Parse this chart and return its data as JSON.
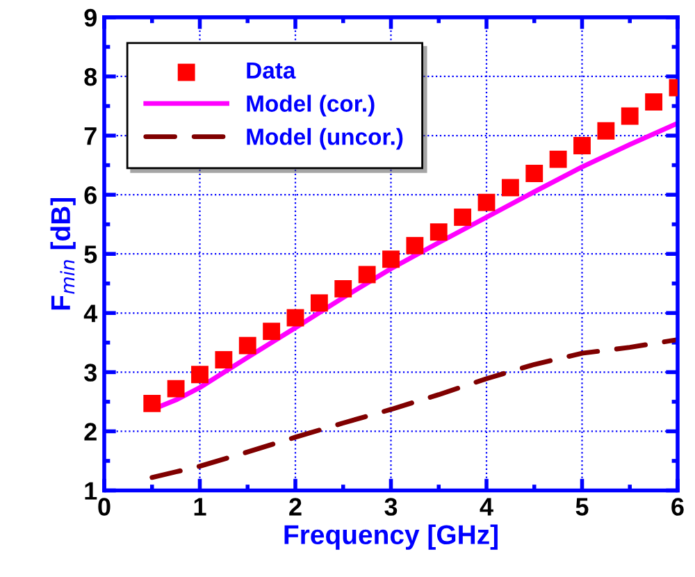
{
  "chart_data": {
    "type": "scatter",
    "xlabel": "Frequency [GHz]",
    "ylabel": "F$_{min}$ [dB]",
    "xlim": [
      0,
      6
    ],
    "ylim": [
      1,
      9
    ],
    "xticks": [
      0,
      1,
      2,
      3,
      4,
      5,
      6
    ],
    "yticks": [
      1,
      2,
      3,
      4,
      5,
      6,
      7,
      8,
      9
    ],
    "grid": true,
    "legend": "top left",
    "series": [
      {
        "name": "Data",
        "marker": "square",
        "color": "#ff0000",
        "x": [
          0.5,
          0.75,
          1,
          1.25,
          1.5,
          1.75,
          2,
          2.25,
          2.5,
          2.75,
          3,
          3.25,
          3.5,
          3.75,
          4,
          4.25,
          4.5,
          4.75,
          5,
          5.25,
          5.5,
          5.75,
          6
        ],
        "values": [
          2.47,
          2.72,
          2.96,
          3.21,
          3.45,
          3.69,
          3.92,
          4.17,
          4.41,
          4.65,
          4.91,
          5.14,
          5.37,
          5.62,
          5.87,
          6.12,
          6.36,
          6.6,
          6.83,
          7.08,
          7.33,
          7.57,
          7.81
        ]
      },
      {
        "name": "Model (cor.)",
        "type": "line",
        "line_style": "solid",
        "color": "#ff00ff",
        "x": [
          0.55,
          0.75,
          1,
          1.5,
          2,
          2.5,
          3,
          3.5,
          4,
          4.5,
          5,
          5.5,
          6
        ],
        "values": [
          2.4,
          2.53,
          2.74,
          3.25,
          3.75,
          4.26,
          4.75,
          5.19,
          5.62,
          6.05,
          6.47,
          6.85,
          7.21
        ]
      },
      {
        "name": "Model (uncor.)",
        "type": "line",
        "line_style": "dashed",
        "color": "#800000",
        "x": [
          0.5,
          1,
          1.5,
          2,
          2.5,
          3,
          3.5,
          4,
          4.5,
          5,
          5.5,
          6
        ],
        "values": [
          1.22,
          1.41,
          1.65,
          1.9,
          2.14,
          2.37,
          2.62,
          2.89,
          3.13,
          3.32,
          3.42,
          3.55
        ]
      }
    ]
  }
}
